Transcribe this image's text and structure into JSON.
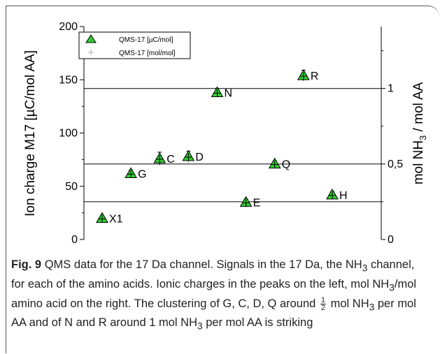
{
  "chart_data": {
    "type": "scatter",
    "ylabel_left": "Ion charge M17 [µC/mol AA]",
    "ylabel_right": "mol NH3 / mol AA",
    "ylim_left": [
      0,
      200
    ],
    "ylim_right": [
      0,
      1.41
    ],
    "yticks_left": [
      "0",
      "50",
      "100",
      "150",
      "200"
    ],
    "yticks_right": [
      "0",
      "0,5",
      "1"
    ],
    "hlines_right": [
      0.25,
      0.5,
      1
    ],
    "grid": false,
    "legend": {
      "placement": "top-left",
      "entries": [
        "QMS-17 [µC/mol]",
        "QMS-17 [mol/mol]"
      ]
    },
    "marker_color": "#33cc33",
    "points": [
      {
        "label": "X1",
        "x": 1,
        "y": 20,
        "err": 2
      },
      {
        "label": "G",
        "x": 2,
        "y": 62,
        "err": 3
      },
      {
        "label": "C",
        "x": 3,
        "y": 76,
        "err": 6
      },
      {
        "label": "D",
        "x": 4,
        "y": 78,
        "err": 5
      },
      {
        "label": "N",
        "x": 5,
        "y": 138,
        "err": 4
      },
      {
        "label": "E",
        "x": 6,
        "y": 35,
        "err": 3
      },
      {
        "label": "Q",
        "x": 7,
        "y": 71,
        "err": 3
      },
      {
        "label": "R",
        "x": 8,
        "y": 154,
        "err": 5
      },
      {
        "label": "H",
        "x": 9,
        "y": 42,
        "err": 3
      }
    ]
  },
  "caption": {
    "fig_label": "Fig. 9",
    "text_1": "QMS data for the 17 Da channel. Signals in the 17 Da, the NH",
    "sub_1": "3",
    "text_2": " channel, for each of the amino acids. Ionic charges in the peaks on the left, mol NH",
    "sub_2": "3",
    "text_3": "/mol amino acid on the right. The clustering of G, C, D, Q around ",
    "frac_num": "1",
    "frac_den": "2",
    "text_4": " mol NH",
    "sub_3": "3",
    "text_5": " per mol AA and of N and R around 1 mol NH",
    "sub_4": "3",
    "text_6": " per mol AA is striking"
  }
}
